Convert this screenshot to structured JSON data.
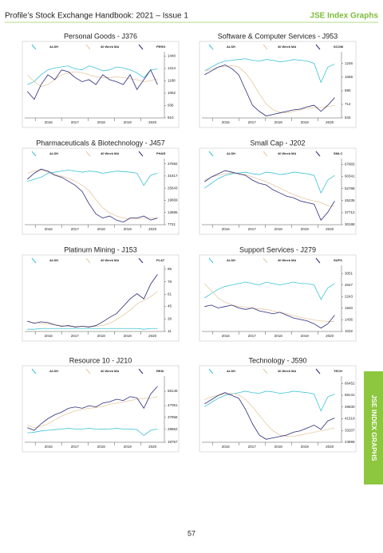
{
  "header": {
    "title": "Profile’s Stock Exchange Handbook: 2021 – Issue 1",
    "section": "JSE Index Graphs"
  },
  "side_tab": "JSE INDEX GRAPHS",
  "page_number": "57",
  "chart_data": [
    {
      "type": "line",
      "title": "Personal Goods - J376",
      "x": [
        2015.7,
        2015.96,
        2016.22,
        2016.48,
        2016.74,
        2017.0,
        2017.26,
        2017.52,
        2017.78,
        2018.04,
        2018.3,
        2018.56,
        2018.82,
        2019.08,
        2019.34,
        2019.6,
        2019.86,
        2020.12,
        2020.38,
        2020.64
      ],
      "xlim": [
        2015.6,
        2020.9
      ],
      "xticks": [
        2016,
        2017,
        2018,
        2019,
        2020
      ],
      "ylim": [
        810,
        1460
      ],
      "yticks": [
        810,
        936,
        1062,
        1188,
        1314,
        1440
      ],
      "series": [
        {
          "name": "ALSH",
          "color": "#3cc3d6",
          "values": [
            1150,
            1180,
            1250,
            1300,
            1320,
            1330,
            1340,
            1310,
            1300,
            1340,
            1320,
            1290,
            1300,
            1330,
            1320,
            1300,
            1270,
            1220,
            1300,
            1310
          ]
        },
        {
          "name": "40 Week MA",
          "color": "#e6c9a2",
          "values": [
            1250,
            1180,
            1130,
            1150,
            1200,
            1250,
            1270,
            1280,
            1270,
            1250,
            1230,
            1220,
            1220,
            1230,
            1220,
            1210,
            1200,
            1180,
            1190,
            1210
          ]
        },
        {
          "name": "PERG",
          "color": "#2b2b7c",
          "values": [
            1080,
            1000,
            1150,
            1250,
            1200,
            1300,
            1280,
            1220,
            1180,
            1200,
            1150,
            1250,
            1200,
            1180,
            1150,
            1250,
            1100,
            1200,
            1300,
            1150
          ]
        }
      ]
    },
    {
      "type": "line",
      "title": "Software & Computer Services - J953",
      "x": [
        2015.7,
        2015.96,
        2016.22,
        2016.48,
        2016.74,
        2017.0,
        2017.26,
        2017.52,
        2017.78,
        2018.04,
        2018.3,
        2018.56,
        2018.82,
        2019.08,
        2019.34,
        2019.6,
        2019.86,
        2020.12,
        2020.38,
        2020.64
      ],
      "xlim": [
        2015.6,
        2020.9
      ],
      "xticks": [
        2016,
        2017,
        2018,
        2019,
        2020
      ],
      "ylim": [
        534,
        1370
      ],
      "yticks": [
        534,
        712,
        890,
        1068,
        1246
      ],
      "series": [
        {
          "name": "ALSH",
          "color": "#3cc3d6",
          "values": [
            1150,
            1200,
            1250,
            1280,
            1290,
            1300,
            1310,
            1290,
            1280,
            1300,
            1290,
            1270,
            1280,
            1300,
            1290,
            1280,
            1250,
            1000,
            1200,
            1240
          ]
        },
        {
          "name": "40 Week MA",
          "color": "#e6c9a2",
          "values": [
            1150,
            1170,
            1200,
            1210,
            1220,
            1200,
            1120,
            1000,
            850,
            720,
            640,
            610,
            600,
            620,
            640,
            660,
            670,
            670,
            680,
            700
          ]
        },
        {
          "name": "SCOM",
          "color": "#2b2b7c",
          "values": [
            1100,
            1150,
            1200,
            1230,
            1180,
            1100,
            900,
            700,
            620,
            560,
            580,
            600,
            620,
            640,
            650,
            680,
            700,
            620,
            700,
            800
          ]
        }
      ]
    },
    {
      "type": "line",
      "title": "Pharmaceuticals & Biotechnology - J457",
      "x": [
        2015.7,
        2015.96,
        2016.22,
        2016.48,
        2016.74,
        2017.0,
        2017.26,
        2017.52,
        2017.78,
        2018.04,
        2018.3,
        2018.56,
        2018.82,
        2019.08,
        2019.34,
        2019.6,
        2019.86,
        2020.12,
        2020.38,
        2020.64
      ],
      "xlim": [
        2015.6,
        2020.9
      ],
      "xticks": [
        2016,
        2017,
        2018,
        2019,
        2020
      ],
      "ylim": [
        7721,
        39000
      ],
      "yticks": [
        7721,
        13695,
        19669,
        25643,
        31617,
        37592
      ],
      "series": [
        {
          "name": "ALSH",
          "color": "#3cc3d6",
          "values": [
            29000,
            30000,
            31000,
            33000,
            33500,
            34000,
            34500,
            34000,
            33500,
            34000,
            33800,
            33000,
            33500,
            34000,
            33800,
            33500,
            33000,
            27000,
            32000,
            33000
          ]
        },
        {
          "name": "40 Week MA",
          "color": "#e6c9a2",
          "values": [
            33000,
            34000,
            34500,
            33500,
            32500,
            31500,
            30500,
            29000,
            27000,
            24500,
            20000,
            16000,
            13500,
            12000,
            11000,
            10500,
            10500,
            11000,
            11000,
            11000
          ]
        },
        {
          "name": "PHAR",
          "color": "#2b2b7c",
          "values": [
            30000,
            33000,
            35000,
            34000,
            32000,
            31000,
            29000,
            27000,
            24000,
            18000,
            13000,
            11000,
            12000,
            10000,
            9000,
            11000,
            11000,
            12000,
            10000,
            11000
          ]
        }
      ]
    },
    {
      "type": "line",
      "title": "Small Cap - J202",
      "x": [
        2015.7,
        2015.96,
        2016.22,
        2016.48,
        2016.74,
        2017.0,
        2017.26,
        2017.52,
        2017.78,
        2018.04,
        2018.3,
        2018.56,
        2018.82,
        2019.08,
        2019.34,
        2019.6,
        2019.86,
        2020.12,
        2020.38,
        2020.64
      ],
      "xlim": [
        2015.6,
        2020.9
      ],
      "xticks": [
        2016,
        2017,
        2018,
        2019,
        2020
      ],
      "ylim": [
        30188,
        70000
      ],
      "yticks": [
        30188,
        37712,
        45235,
        52788,
        60341,
        67865
      ],
      "series": [
        {
          "name": "ALSH",
          "color": "#3cc3d6",
          "values": [
            53000,
            56000,
            59000,
            61000,
            62000,
            62500,
            63000,
            62000,
            61500,
            63000,
            62500,
            61500,
            62000,
            63000,
            62500,
            62000,
            61000,
            50000,
            58000,
            61000
          ]
        },
        {
          "name": "40 Week MA",
          "color": "#e6c9a2",
          "values": [
            58000,
            60000,
            61000,
            62000,
            62500,
            62000,
            61500,
            60000,
            58500,
            57000,
            55000,
            53000,
            51000,
            49000,
            47500,
            46000,
            45000,
            44000,
            42000,
            42000
          ]
        },
        {
          "name": "SMLC",
          "color": "#2b2b7c",
          "values": [
            57000,
            60000,
            62000,
            64000,
            63000,
            62000,
            61000,
            58000,
            56000,
            55000,
            52000,
            50000,
            48000,
            47000,
            45000,
            44000,
            43000,
            33000,
            38000,
            45000
          ]
        }
      ]
    },
    {
      "type": "line",
      "title": "Platinum Mining - J153",
      "x": [
        2015.7,
        2015.96,
        2016.22,
        2016.48,
        2016.74,
        2017.0,
        2017.26,
        2017.52,
        2017.78,
        2018.04,
        2018.3,
        2018.56,
        2018.82,
        2019.08,
        2019.34,
        2019.6,
        2019.86,
        2020.12,
        2020.38,
        2020.64
      ],
      "xlim": [
        2015.6,
        2020.9
      ],
      "xticks": [
        2016,
        2017,
        2018,
        2019,
        2020
      ],
      "ylim": [
        11,
        97
      ],
      "yticks": [
        11,
        28,
        45,
        61,
        78,
        95
      ],
      "series": [
        {
          "name": "ALSH",
          "color": "#3cc3d6",
          "values": [
            14,
            14,
            15,
            15,
            15,
            15,
            15,
            15,
            15,
            15,
            15,
            15,
            15,
            15,
            15,
            15,
            15,
            14,
            15,
            15
          ]
        },
        {
          "name": "40 Week MA",
          "color": "#e6c9a2",
          "values": [
            24,
            23,
            22,
            21,
            20,
            19,
            18,
            18,
            18,
            18,
            18,
            19,
            22,
            27,
            33,
            40,
            48,
            53,
            58,
            65
          ]
        },
        {
          "name": "PLAT",
          "color": "#2b2b7c",
          "values": [
            25,
            22,
            24,
            23,
            20,
            18,
            19,
            17,
            18,
            17,
            19,
            24,
            30,
            35,
            45,
            55,
            62,
            55,
            75,
            88
          ]
        }
      ]
    },
    {
      "type": "line",
      "title": "Support Services - J279",
      "x": [
        2015.7,
        2015.96,
        2016.22,
        2016.48,
        2016.74,
        2017.0,
        2017.26,
        2017.52,
        2017.78,
        2018.04,
        2018.3,
        2018.56,
        2018.82,
        2019.08,
        2019.34,
        2019.6,
        2019.86,
        2020.12,
        2020.38,
        2020.64
      ],
      "xlim": [
        2015.6,
        2020.9
      ],
      "xticks": [
        2016,
        2017,
        2018,
        2019,
        2020
      ],
      "ylim": [
        1032,
        3250
      ],
      "yticks": [
        1032,
        1436,
        1840,
        2243,
        2647,
        3051
      ],
      "series": [
        {
          "name": "ALSH",
          "color": "#3cc3d6",
          "values": [
            2200,
            2350,
            2500,
            2600,
            2650,
            2700,
            2750,
            2700,
            2650,
            2750,
            2700,
            2650,
            2700,
            2750,
            2700,
            2700,
            2650,
            2150,
            2550,
            2700
          ]
        },
        {
          "name": "40 Week MA",
          "color": "#e6c9a2",
          "values": [
            2700,
            2450,
            2200,
            2050,
            1950,
            1900,
            1880,
            1850,
            1820,
            1800,
            1750,
            1700,
            1650,
            1580,
            1520,
            1480,
            1430,
            1400,
            1380,
            1380
          ]
        },
        {
          "name": "SUPS",
          "color": "#2b2b7c",
          "values": [
            1900,
            1950,
            1850,
            1900,
            1950,
            1850,
            1800,
            1850,
            1750,
            1700,
            1650,
            1700,
            1600,
            1500,
            1450,
            1400,
            1300,
            1150,
            1300,
            1600
          ]
        }
      ]
    },
    {
      "type": "line",
      "title": "Resource 10 - J210",
      "x": [
        2015.7,
        2015.96,
        2016.22,
        2016.48,
        2016.74,
        2017.0,
        2017.26,
        2017.52,
        2017.78,
        2018.04,
        2018.3,
        2018.56,
        2018.82,
        2019.08,
        2019.34,
        2019.6,
        2019.86,
        2020.12,
        2020.38,
        2020.64
      ],
      "xlim": [
        2015.6,
        2020.9
      ],
      "xticks": [
        2016,
        2017,
        2018,
        2019,
        2020
      ],
      "ylim": [
        18767,
        68000
      ],
      "yticks": [
        18767,
        28862,
        37956,
        47051,
        58146
      ],
      "series": [
        {
          "name": "ALSH",
          "color": "#3cc3d6",
          "values": [
            26000,
            26500,
            27500,
            28000,
            28500,
            29000,
            29500,
            29000,
            29000,
            29500,
            29000,
            28800,
            29000,
            29500,
            29000,
            29000,
            28500,
            24000,
            28000,
            29000
          ]
        },
        {
          "name": "40 Week MA",
          "color": "#e6c9a2",
          "values": [
            32000,
            30000,
            31000,
            33000,
            36000,
            39000,
            41000,
            43000,
            44000,
            45000,
            45500,
            46500,
            48000,
            49000,
            50000,
            51000,
            52000,
            52500,
            53000,
            54000
          ]
        },
        {
          "name": "RESI",
          "color": "#2b2b7c",
          "values": [
            30000,
            28000,
            33000,
            37000,
            40000,
            42000,
            45000,
            46000,
            45000,
            47000,
            46000,
            49000,
            50000,
            52000,
            51000,
            54000,
            53000,
            45000,
            56000,
            62000
          ]
        }
      ]
    },
    {
      "type": "line",
      "title": "Technology - J590",
      "x": [
        2015.7,
        2015.96,
        2016.22,
        2016.48,
        2016.74,
        2017.0,
        2017.26,
        2017.52,
        2017.78,
        2018.04,
        2018.3,
        2018.56,
        2018.82,
        2019.08,
        2019.34,
        2019.6,
        2019.86,
        2020.12,
        2020.38,
        2020.64
      ],
      "xlim": [
        2015.6,
        2020.9
      ],
      "xticks": [
        2016,
        2017,
        2018,
        2019,
        2020
      ],
      "ylim": [
        24896,
        70000
      ],
      "yticks": [
        24896,
        33207,
        41519,
        49830,
        58141,
        66452
      ],
      "series": [
        {
          "name": "ALSH",
          "color": "#3cc3d6",
          "values": [
            50000,
            53000,
            56000,
            58000,
            59000,
            60000,
            61000,
            60000,
            59500,
            61000,
            60500,
            59500,
            60000,
            61000,
            60500,
            60000,
            59000,
            47000,
            57000,
            59000
          ]
        },
        {
          "name": "40 Week MA",
          "color": "#e6c9a2",
          "values": [
            55000,
            57000,
            58000,
            59000,
            59500,
            58500,
            55000,
            50000,
            44000,
            38000,
            33000,
            30000,
            29000,
            29000,
            30000,
            31000,
            32000,
            33000,
            34000,
            35000
          ]
        },
        {
          "name": "TECH",
          "color": "#2b2b7c",
          "values": [
            52000,
            55000,
            58000,
            60000,
            58000,
            56000,
            48000,
            38000,
            30000,
            27000,
            28000,
            29000,
            30000,
            32000,
            33000,
            35000,
            37000,
            34000,
            40000,
            42000
          ]
        }
      ]
    }
  ]
}
